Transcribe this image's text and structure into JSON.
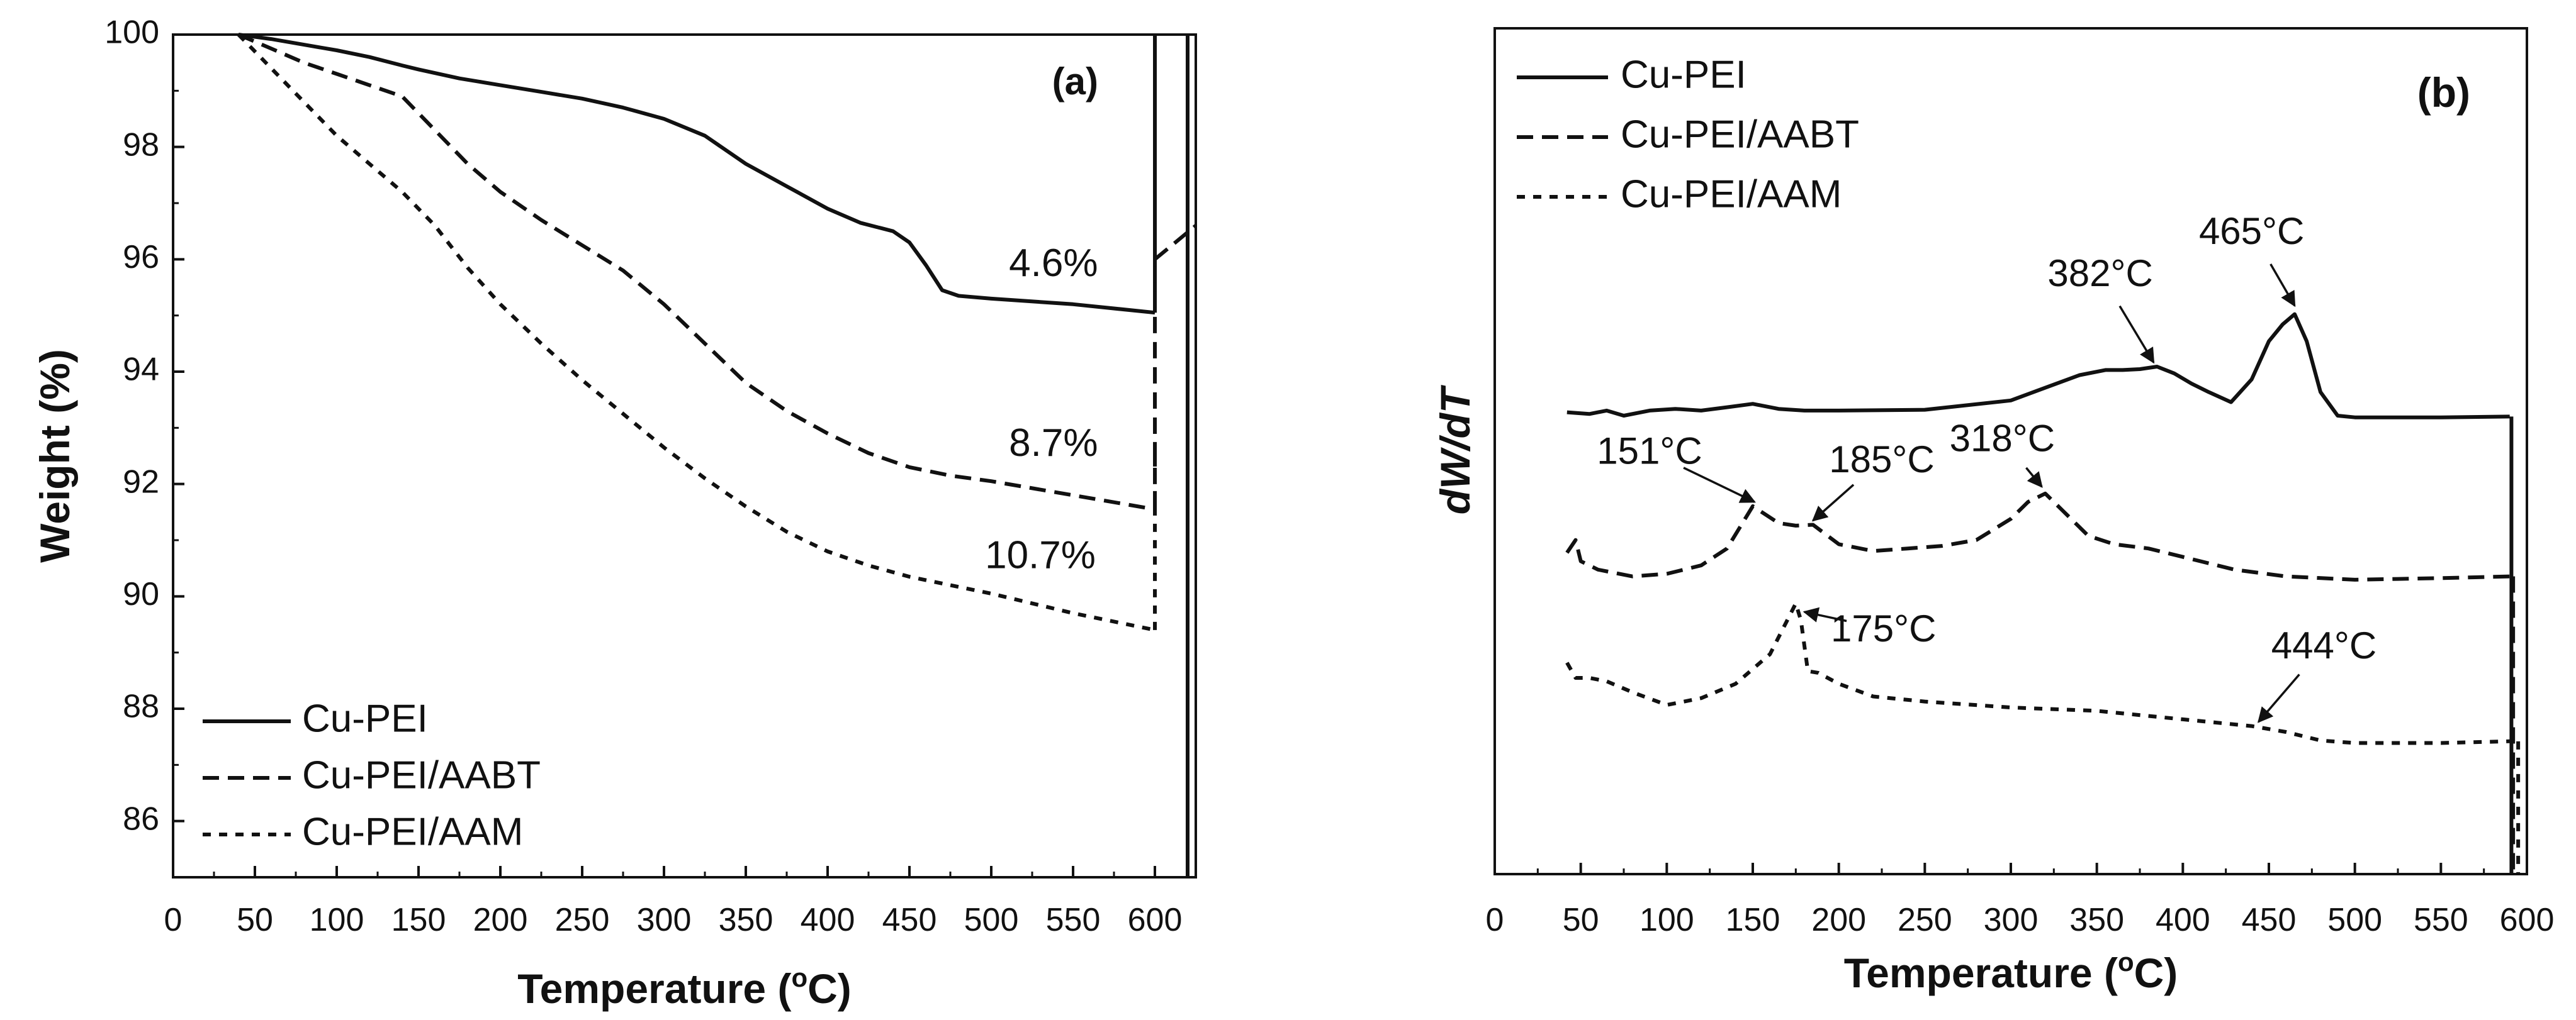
{
  "chart_data": [
    {
      "panel": "a",
      "type": "line",
      "panel_label": "(a)",
      "xlabel_main": "Temperature (",
      "xlabel_sup": "o",
      "xlabel_end": "C)",
      "ylabel": "Weight (%)",
      "xlim": [
        0,
        625
      ],
      "ylim": [
        85,
        100
      ],
      "xticks": [
        0,
        50,
        100,
        150,
        200,
        250,
        300,
        350,
        400,
        450,
        500,
        550,
        600
      ],
      "yticks": [
        86,
        88,
        90,
        92,
        94,
        96,
        98,
        100
      ],
      "legend_position": "bottom-left",
      "series": [
        {
          "name": "Cu-PEI",
          "style": "solid",
          "x": [
            40,
            60,
            80,
            100,
            120,
            140,
            150,
            175,
            200,
            225,
            250,
            275,
            300,
            325,
            350,
            375,
            400,
            420,
            440,
            450,
            460,
            470,
            480,
            500,
            550,
            600
          ],
          "y": [
            100,
            99.92,
            99.82,
            99.72,
            99.6,
            99.45,
            99.38,
            99.22,
            99.1,
            98.98,
            98.86,
            98.7,
            98.5,
            98.2,
            97.7,
            97.3,
            96.9,
            96.65,
            96.5,
            96.3,
            95.9,
            95.45,
            95.35,
            95.3,
            95.2,
            95.05
          ]
        },
        {
          "name": "Cu-PEI/AABT",
          "style": "dashed",
          "x": [
            40,
            60,
            80,
            100,
            120,
            140,
            160,
            180,
            200,
            225,
            250,
            275,
            300,
            325,
            350,
            375,
            400,
            425,
            450,
            475,
            500,
            550,
            600
          ],
          "y": [
            100,
            99.75,
            99.5,
            99.3,
            99.1,
            98.9,
            98.3,
            97.7,
            97.2,
            96.7,
            96.25,
            95.8,
            95.2,
            94.5,
            93.8,
            93.3,
            92.9,
            92.55,
            92.3,
            92.15,
            92.05,
            91.8,
            91.55
          ]
        },
        {
          "name": "Cu-PEI/AAM",
          "style": "short-dashed",
          "x": [
            40,
            60,
            80,
            100,
            120,
            140,
            160,
            180,
            200,
            225,
            250,
            275,
            300,
            325,
            350,
            375,
            400,
            425,
            450,
            475,
            500,
            550,
            600
          ],
          "y": [
            100,
            99.4,
            98.8,
            98.2,
            97.7,
            97.2,
            96.6,
            95.85,
            95.2,
            94.5,
            93.85,
            93.25,
            92.65,
            92.1,
            91.6,
            91.15,
            90.8,
            90.55,
            90.35,
            90.2,
            90.05,
            89.7,
            89.4
          ]
        }
      ],
      "annotations": [
        {
          "text": "4.6%",
          "x": 538,
          "y": 95.7
        },
        {
          "text": "8.7%",
          "x": 538,
          "y": 92.5
        },
        {
          "text": "10.7%",
          "x": 530,
          "y": 90.5
        }
      ]
    },
    {
      "panel": "b",
      "type": "line",
      "panel_label": "(b)",
      "xlabel_main": "Temperature (",
      "xlabel_sup": "o",
      "xlabel_end": "C)",
      "ylabel": "dW/dT",
      "xlim": [
        0,
        600
      ],
      "ylim": [
        0,
        1
      ],
      "xticks": [
        0,
        50,
        100,
        150,
        200,
        250,
        300,
        350,
        400,
        450,
        500,
        550,
        600
      ],
      "legend_position": "top-left",
      "series": [
        {
          "name": "Cu-PEI",
          "style": "solid",
          "x": [
            42,
            55,
            65,
            75,
            90,
            105,
            120,
            135,
            150,
            165,
            180,
            200,
            250,
            300,
            320,
            340,
            355,
            365,
            375,
            385,
            395,
            405,
            415,
            428,
            440,
            450,
            458,
            465,
            472,
            480,
            490,
            500,
            550,
            590
          ],
          "y": [
            0.546,
            0.544,
            0.548,
            0.542,
            0.548,
            0.55,
            0.548,
            0.552,
            0.556,
            0.55,
            0.548,
            0.548,
            0.549,
            0.56,
            0.575,
            0.59,
            0.596,
            0.596,
            0.597,
            0.6,
            0.592,
            0.58,
            0.57,
            0.558,
            0.585,
            0.63,
            0.65,
            0.662,
            0.63,
            0.57,
            0.542,
            0.54,
            0.54,
            0.541
          ]
        },
        {
          "name": "Cu-PEI/AABT",
          "style": "dashed",
          "x": [
            42,
            47,
            50,
            60,
            80,
            100,
            120,
            135,
            150,
            165,
            175,
            185,
            200,
            220,
            240,
            260,
            280,
            300,
            310,
            320,
            330,
            345,
            360,
            380,
            400,
            430,
            460,
            500,
            550,
            590
          ],
          "y": [
            0.38,
            0.395,
            0.37,
            0.36,
            0.352,
            0.355,
            0.365,
            0.385,
            0.435,
            0.415,
            0.412,
            0.413,
            0.39,
            0.382,
            0.385,
            0.388,
            0.395,
            0.42,
            0.44,
            0.45,
            0.43,
            0.4,
            0.39,
            0.385,
            0.375,
            0.36,
            0.352,
            0.348,
            0.35,
            0.352
          ]
        },
        {
          "name": "Cu-PEI/AAM",
          "style": "short-dashed",
          "x": [
            42,
            47,
            55,
            65,
            80,
            100,
            120,
            140,
            160,
            170,
            175,
            178,
            182,
            188,
            200,
            220,
            250,
            300,
            350,
            400,
            440,
            460,
            480,
            500,
            550,
            590
          ],
          "y": [
            0.25,
            0.232,
            0.232,
            0.228,
            0.215,
            0.2,
            0.208,
            0.225,
            0.26,
            0.3,
            0.32,
            0.3,
            0.24,
            0.238,
            0.225,
            0.21,
            0.204,
            0.197,
            0.193,
            0.183,
            0.175,
            0.168,
            0.158,
            0.155,
            0.155,
            0.157
          ]
        }
      ],
      "annotations": [
        {
          "text": "382°C",
          "label_x": 352,
          "label_y": 0.695,
          "arrow_x": 383,
          "arrow_y": 0.605
        },
        {
          "text": "465°C",
          "label_x": 440,
          "label_y": 0.745,
          "arrow_x": 465,
          "arrow_y": 0.672
        },
        {
          "text": "151°C",
          "label_x": 90,
          "label_y": 0.485,
          "arrow_x": 151,
          "arrow_y": 0.44
        },
        {
          "text": "185°C",
          "label_x": 225,
          "label_y": 0.475,
          "arrow_x": 185,
          "arrow_y": 0.418
        },
        {
          "text": "318°C",
          "label_x": 295,
          "label_y": 0.5,
          "arrow_x": 318,
          "arrow_y": 0.458
        },
        {
          "text": "175°C",
          "label_x": 226,
          "label_y": 0.275,
          "arrow_x": 180,
          "arrow_y": 0.31
        },
        {
          "text": "444°C",
          "label_x": 482,
          "label_y": 0.255,
          "arrow_x": 444,
          "arrow_y": 0.18
        }
      ]
    }
  ]
}
